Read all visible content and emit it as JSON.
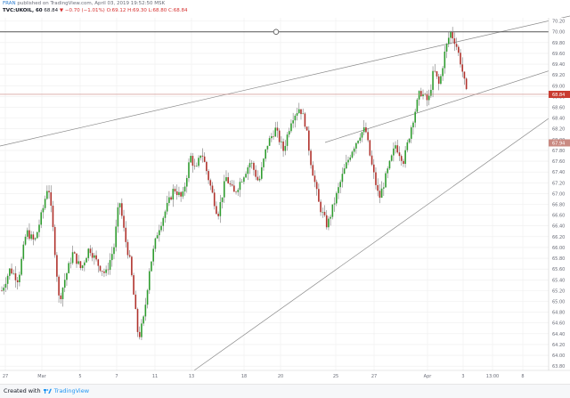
{
  "header": {
    "author": "FRAN",
    "published_text": "published on TradingView.com, April 03, 2019 19:52:50 MSK",
    "symbol": "TVC:UKOIL, 60",
    "last": "68.84",
    "change": "▼ −0.70 (−1.01%)",
    "ohlc": "O:69.12 H:69.30 L:68.80 C:68.84"
  },
  "footer": {
    "created_with": "Created with",
    "brand": "TradingView"
  },
  "colors": {
    "up": "#2f9c2f",
    "down": "#b0322c",
    "wick": "#7a7a7a",
    "grid": "#eeeeee",
    "trendline": "#8a8a8a",
    "price_line": "#c9857f",
    "last_price_label": "#c93b30",
    "crosshair_label": "#c98a82"
  },
  "chart_data": {
    "type": "candlestick",
    "y_axis": {
      "ticks": [
        "70.20",
        "70.00",
        "69.80",
        "69.60",
        "69.40",
        "69.20",
        "69.00",
        "68.80",
        "68.60",
        "68.40",
        "68.20",
        "68.00",
        "67.80",
        "67.60",
        "67.40",
        "67.20",
        "67.00",
        "66.80",
        "66.60",
        "66.40",
        "66.20",
        "66.00",
        "65.80",
        "65.60",
        "65.40",
        "65.20",
        "65.00",
        "64.80",
        "64.60",
        "64.40",
        "64.20",
        "64.00",
        "63.80"
      ],
      "range": [
        63.72,
        70.26
      ]
    },
    "x_axis": {
      "ticks": [
        "27",
        "Mar",
        "5",
        "7",
        "11",
        "13",
        "18",
        "20",
        "25",
        "27",
        "Apr",
        "3",
        "13:00",
        "8"
      ]
    },
    "last_price": 68.84,
    "crosshair_price": 67.94,
    "horizontal_line": 70.0,
    "series": {
      "x_range": [
        0,
        100
      ],
      "description_points": [
        [
          0,
          65.2
        ],
        [
          1.5,
          65.6
        ],
        [
          3,
          65.4
        ],
        [
          4.5,
          66.3
        ],
        [
          6,
          66.1
        ],
        [
          7.5,
          66.7
        ],
        [
          8.5,
          67.2
        ],
        [
          9.5,
          66.2
        ],
        [
          10.5,
          65.0
        ],
        [
          11.5,
          65.4
        ],
        [
          13,
          65.9
        ],
        [
          14.5,
          65.6
        ],
        [
          16,
          66.0
        ],
        [
          17.5,
          65.7
        ],
        [
          19,
          65.5
        ],
        [
          20.5,
          66.0
        ],
        [
          21.5,
          66.9
        ],
        [
          22.5,
          66.2
        ],
        [
          23.5,
          65.7
        ],
        [
          25,
          64.3
        ],
        [
          26,
          64.7
        ],
        [
          27,
          65.6
        ],
        [
          28.5,
          66.3
        ],
        [
          30,
          66.7
        ],
        [
          31.5,
          67.1
        ],
        [
          33,
          66.9
        ],
        [
          34.5,
          67.7
        ],
        [
          35.5,
          67.4
        ],
        [
          36.5,
          67.8
        ],
        [
          38,
          67.2
        ],
        [
          39.5,
          66.6
        ],
        [
          41,
          67.3
        ],
        [
          42.5,
          67.0
        ],
        [
          44,
          67.3
        ],
        [
          45.5,
          67.6
        ],
        [
          47,
          67.2
        ],
        [
          48.5,
          67.9
        ],
        [
          50,
          68.2
        ],
        [
          51.5,
          67.8
        ],
        [
          53,
          68.4
        ],
        [
          54.5,
          68.6
        ],
        [
          55.5,
          68.3
        ],
        [
          56.5,
          67.6
        ],
        [
          58,
          66.8
        ],
        [
          59.5,
          66.4
        ],
        [
          61,
          66.9
        ],
        [
          62.5,
          67.4
        ],
        [
          64,
          67.8
        ],
        [
          65.5,
          68.1
        ],
        [
          66.5,
          68.2
        ],
        [
          67.5,
          67.6
        ],
        [
          69,
          66.9
        ],
        [
          70.5,
          67.4
        ],
        [
          72,
          67.9
        ],
        [
          73.5,
          67.6
        ],
        [
          75,
          68.3
        ],
        [
          76.5,
          68.9
        ],
        [
          78,
          68.7
        ],
        [
          79,
          69.3
        ],
        [
          80,
          69.0
        ],
        [
          81,
          69.6
        ],
        [
          82,
          70.0
        ],
        [
          83,
          69.8
        ],
        [
          84,
          69.4
        ],
        [
          85,
          68.84
        ]
      ]
    }
  }
}
